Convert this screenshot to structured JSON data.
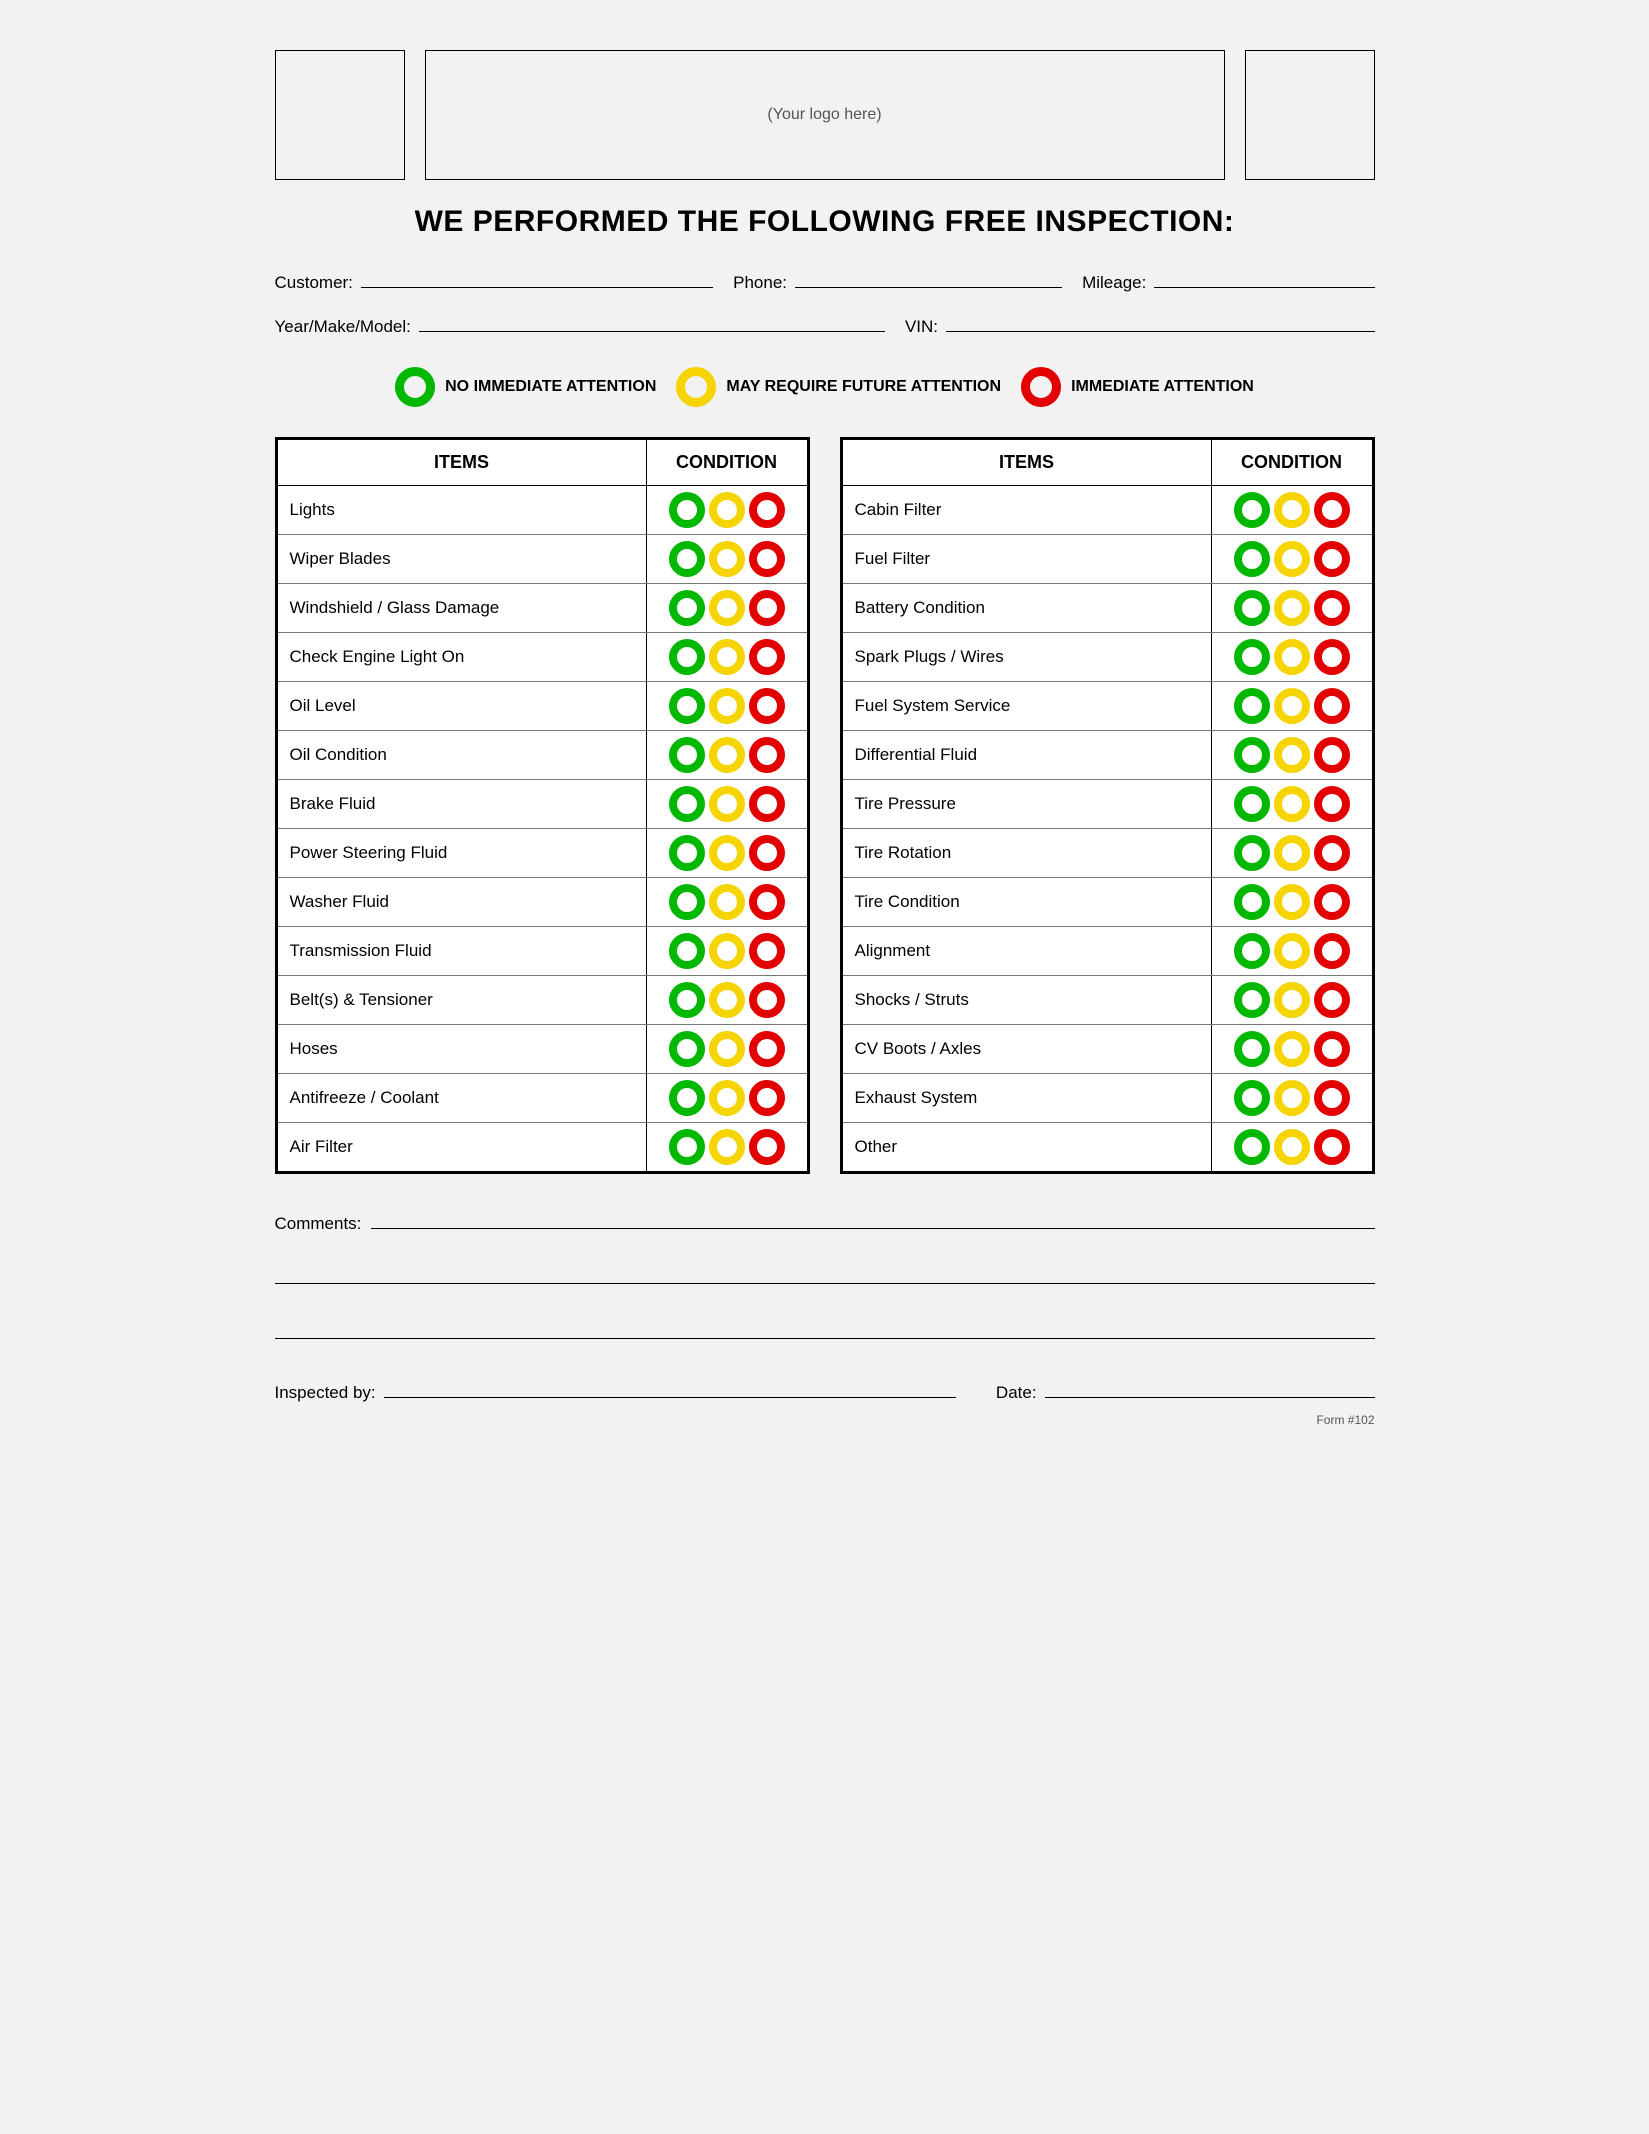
{
  "header": {
    "logo_placeholder": "(Your logo here)"
  },
  "title": "WE PERFORMED THE FOLLOWING FREE INSPECTION:",
  "info_fields": {
    "customer": "Customer:",
    "phone": "Phone:",
    "mileage": "Mileage:",
    "year_make_model": "Year/Make/Model:",
    "vin": "VIN:"
  },
  "legend": {
    "green": {
      "label": "NO IMMEDIATE ATTENTION",
      "color": "#00b800"
    },
    "yellow": {
      "label": "MAY REQUIRE FUTURE ATTENTION",
      "color": "#f5d400"
    },
    "red": {
      "label": "IMMEDIATE ATTENTION",
      "color": "#e30000"
    }
  },
  "table_headers": {
    "items": "ITEMS",
    "condition": "CONDITION"
  },
  "colors": {
    "green": "#00b800",
    "yellow": "#f5d400",
    "red": "#e30000"
  },
  "left_items": [
    "Lights",
    "Wiper Blades",
    "Windshield / Glass Damage",
    "Check Engine Light On",
    "Oil Level",
    "Oil Condition",
    "Brake Fluid",
    "Power Steering Fluid",
    "Washer Fluid",
    "Transmission Fluid",
    "Belt(s) & Tensioner",
    "Hoses",
    "Antifreeze / Coolant",
    "Air Filter"
  ],
  "right_items": [
    "Cabin Filter",
    "Fuel Filter",
    "Battery Condition",
    "Spark Plugs / Wires",
    "Fuel System Service",
    "Differential Fluid",
    "Tire Pressure",
    "Tire Rotation",
    "Tire Condition",
    "Alignment",
    "Shocks / Struts",
    "CV Boots / Axles",
    "Exhaust System",
    "Other"
  ],
  "footer": {
    "comments": "Comments:",
    "inspected_by": "Inspected by:",
    "date": "Date:",
    "form_number": "Form #102"
  }
}
